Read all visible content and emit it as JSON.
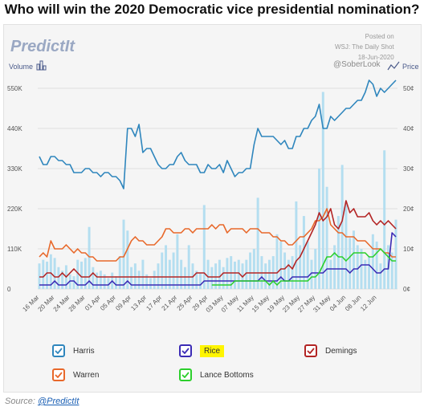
{
  "header": {
    "title": "Who will win the 2020 Democratic vice presidential nomination?"
  },
  "brand": {
    "logo": "PredictIt",
    "volume_label": "Volume",
    "price_label": "Price",
    "credit": "@SoberLook",
    "posted_on": "Posted on",
    "posted_by": "WSJ: The Daily Shot",
    "posted_date": "18-Jun-2020"
  },
  "source": {
    "prefix": "Source: ",
    "link": "@PredictIt"
  },
  "colors": {
    "Harris": "#2f86bd",
    "Warren": "#e8682a",
    "Rice": "#3b2bb5",
    "Demings": "#b32424",
    "Lance Bottoms": "#2ccf2c",
    "volume": "#b4def0"
  },
  "chart_data": {
    "type": "line",
    "x": [
      "16 Mar",
      "17 Mar",
      "18 Mar",
      "19 Mar",
      "20 Mar",
      "21 Mar",
      "22 Mar",
      "23 Mar",
      "24 Mar",
      "25 Mar",
      "26 Mar",
      "27 Mar",
      "28 Mar",
      "29 Mar",
      "30 Mar",
      "31 Mar",
      "01 Apr",
      "02 Apr",
      "03 Apr",
      "04 Apr",
      "05 Apr",
      "06 Apr",
      "07 Apr",
      "08 Apr",
      "09 Apr",
      "10 Apr",
      "11 Apr",
      "12 Apr",
      "13 Apr",
      "14 Apr",
      "15 Apr",
      "16 Apr",
      "17 Apr",
      "18 Apr",
      "19 Apr",
      "20 Apr",
      "21 Apr",
      "22 Apr",
      "23 Apr",
      "24 Apr",
      "25 Apr",
      "26 Apr",
      "27 Apr",
      "28 Apr",
      "29 Apr",
      "30 Apr",
      "01 May",
      "02 May",
      "03 May",
      "04 May",
      "05 May",
      "06 May",
      "07 May",
      "08 May",
      "09 May",
      "10 May",
      "11 May",
      "12 May",
      "13 May",
      "14 May",
      "15 May",
      "16 May",
      "17 May",
      "18 May",
      "19 May",
      "20 May",
      "21 May",
      "22 May",
      "23 May",
      "24 May",
      "25 May",
      "26 May",
      "27 May",
      "28 May",
      "29 May",
      "30 May",
      "31 May",
      "01 Jun",
      "02 Jun",
      "03 Jun",
      "04 Jun",
      "05 Jun",
      "06 Jun",
      "07 Jun",
      "08 Jun",
      "09 Jun",
      "10 Jun",
      "11 Jun",
      "12 Jun",
      "13 Jun",
      "14 Jun",
      "15 Jun",
      "16 Jun",
      "17 Jun"
    ],
    "x_tick_labels": [
      "16 Mar",
      "20 Mar",
      "24 Mar",
      "28 Mar",
      "01 Apr",
      "05 Apr",
      "09 Apr",
      "13 Apr",
      "17 Apr",
      "21 Apr",
      "25 Apr",
      "29 Apr",
      "03 May",
      "07 May",
      "11 May",
      "15 May",
      "19 May",
      "23 May",
      "27 May",
      "31 May",
      "04 Jun",
      "08 Jun",
      "12 Jun"
    ],
    "y_left": {
      "label": "Volume",
      "ticks": [
        "0",
        "110K",
        "220K",
        "330K",
        "440K",
        "550K"
      ],
      "range": [
        0,
        550000
      ]
    },
    "y_right": {
      "label": "Price",
      "ticks": [
        "0¢",
        "10¢",
        "20¢",
        "30¢",
        "40¢",
        "50¢"
      ],
      "range": [
        0,
        50
      ]
    },
    "volume": [
      70000,
      80000,
      75000,
      95000,
      85000,
      60000,
      50000,
      65000,
      40000,
      35000,
      80000,
      75000,
      85000,
      170000,
      60000,
      45000,
      50000,
      40000,
      30000,
      45000,
      35000,
      90000,
      190000,
      160000,
      60000,
      70000,
      50000,
      80000,
      40000,
      30000,
      50000,
      70000,
      100000,
      120000,
      80000,
      100000,
      150000,
      80000,
      60000,
      120000,
      70000,
      50000,
      45000,
      230000,
      80000,
      60000,
      70000,
      80000,
      60000,
      85000,
      90000,
      75000,
      80000,
      70000,
      80000,
      100000,
      110000,
      250000,
      90000,
      70000,
      80000,
      90000,
      150000,
      130000,
      100000,
      80000,
      90000,
      240000,
      120000,
      200000,
      130000,
      80000,
      110000,
      330000,
      540000,
      280000,
      80000,
      120000,
      200000,
      340000,
      240000,
      140000,
      160000,
      120000,
      110000,
      80000,
      90000,
      150000,
      130000,
      70000,
      380000,
      120000,
      100000,
      190000
    ],
    "series": [
      {
        "name": "Harris",
        "axis": "right",
        "values": [
          33,
          31,
          31,
          33,
          33,
          32,
          32,
          31,
          31,
          29,
          29,
          29,
          30,
          30,
          29,
          29,
          28,
          29,
          29,
          28,
          28,
          27,
          25,
          40,
          40,
          38,
          41,
          34,
          35,
          35,
          33,
          31,
          30,
          30,
          31,
          31,
          33,
          34,
          32,
          31,
          31,
          31,
          29,
          29,
          31,
          30,
          30,
          31,
          29,
          32,
          30,
          28,
          29,
          29,
          30,
          30,
          36,
          40,
          38,
          38,
          38,
          38,
          37,
          36,
          37,
          35,
          35,
          38,
          38,
          40,
          40,
          42,
          43,
          46,
          40,
          40,
          43,
          42,
          43,
          44,
          45,
          45,
          46,
          47,
          47,
          49,
          52,
          51,
          48,
          50,
          49,
          50,
          51,
          52
        ]
      },
      {
        "name": "Warren",
        "axis": "right",
        "values": [
          8,
          9,
          8,
          12,
          10,
          10,
          10,
          11,
          10,
          9,
          10,
          9,
          9,
          8,
          8,
          7,
          7,
          7,
          7,
          7,
          7,
          8,
          8,
          10,
          12,
          13,
          12,
          12,
          11,
          11,
          11,
          12,
          13,
          15,
          15,
          14,
          14,
          14,
          15,
          15,
          14,
          15,
          15,
          15,
          15,
          16,
          15,
          16,
          16,
          14,
          15,
          15,
          15,
          15,
          14,
          15,
          15,
          15,
          14,
          14,
          14,
          13,
          13,
          12,
          12,
          11,
          11,
          12,
          13,
          13,
          14,
          15,
          17,
          17,
          18,
          20,
          16,
          15,
          14,
          14,
          13,
          13,
          13,
          12,
          12,
          12,
          11,
          10,
          10,
          10,
          9,
          9,
          8,
          8
        ]
      },
      {
        "name": "Rice",
        "axis": "right",
        "values": [
          1,
          1,
          1,
          1,
          2,
          1,
          1,
          1,
          2,
          2,
          1,
          1,
          1,
          2,
          1,
          1,
          1,
          1,
          1,
          2,
          1,
          1,
          1,
          2,
          1,
          1,
          1,
          1,
          1,
          1,
          1,
          1,
          1,
          1,
          1,
          1,
          1,
          1,
          1,
          1,
          1,
          1,
          1,
          2,
          2,
          2,
          2,
          2,
          2,
          2,
          2,
          2,
          2,
          2,
          2,
          2,
          2,
          2,
          3,
          2,
          2,
          2,
          2,
          3,
          2,
          2,
          3,
          3,
          3,
          3,
          3,
          4,
          4,
          4,
          4,
          5,
          5,
          5,
          5,
          5,
          5,
          4,
          5,
          5,
          6,
          6,
          6,
          5,
          4,
          4,
          5,
          5,
          14,
          13
        ]
      },
      {
        "name": "Demings",
        "axis": "right",
        "values": [
          3,
          3,
          4,
          4,
          3,
          3,
          4,
          3,
          4,
          5,
          4,
          3,
          3,
          3,
          4,
          3,
          3,
          3,
          3,
          3,
          3,
          3,
          3,
          3,
          3,
          3,
          3,
          3,
          3,
          3,
          3,
          3,
          3,
          3,
          3,
          3,
          3,
          3,
          3,
          3,
          3,
          4,
          4,
          4,
          3,
          3,
          3,
          3,
          4,
          4,
          4,
          4,
          4,
          3,
          4,
          4,
          4,
          4,
          4,
          4,
          4,
          4,
          4,
          5,
          5,
          6,
          5,
          7,
          8,
          10,
          12,
          14,
          16,
          19,
          17,
          18,
          20,
          16,
          15,
          17,
          22,
          19,
          20,
          18,
          18,
          18,
          19,
          17,
          16,
          17,
          16,
          17,
          16,
          15
        ]
      },
      {
        "name": "Lance Bottoms",
        "axis": "right",
        "values": [
          null,
          null,
          null,
          null,
          null,
          null,
          null,
          null,
          null,
          null,
          null,
          null,
          null,
          null,
          null,
          null,
          null,
          null,
          null,
          null,
          null,
          null,
          null,
          null,
          null,
          null,
          null,
          null,
          null,
          null,
          null,
          null,
          null,
          null,
          null,
          null,
          null,
          null,
          null,
          null,
          null,
          null,
          null,
          null,
          null,
          1,
          1,
          1,
          1,
          1,
          1,
          2,
          2,
          2,
          2,
          2,
          2,
          2,
          2,
          2,
          1,
          2,
          1,
          2,
          2,
          2,
          2,
          2,
          2,
          2,
          2,
          3,
          3,
          4,
          6,
          8,
          8,
          9,
          8,
          8,
          7,
          8,
          9,
          9,
          9,
          9,
          8,
          8,
          9,
          10,
          9,
          8,
          7,
          7
        ]
      }
    ],
    "legend": [
      "Harris",
      "Rice",
      "Demings",
      "Warren",
      "Lance Bottoms"
    ]
  }
}
